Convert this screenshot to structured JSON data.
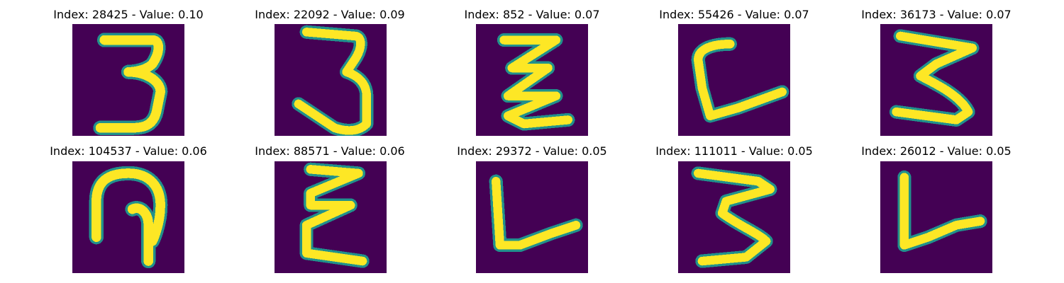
{
  "colors": {
    "background": "#440154",
    "stroke": "#fde725",
    "edge": "#21918c"
  },
  "images": [
    {
      "title": "Index: 28425 - Value: 0.10"
    },
    {
      "title": "Index: 22092 - Value: 0.09"
    },
    {
      "title": "Index: 852 - Value: 0.07"
    },
    {
      "title": "Index: 55426 - Value: 0.07"
    },
    {
      "title": "Index: 36173 - Value: 0.07"
    },
    {
      "title": "Index: 104537 - Value: 0.06"
    },
    {
      "title": "Index: 88571 - Value: 0.06"
    },
    {
      "title": "Index: 29372 - Value: 0.05"
    },
    {
      "title": "Index: 111011 - Value: 0.05"
    },
    {
      "title": "Index: 26012 - Value: 0.05"
    }
  ]
}
